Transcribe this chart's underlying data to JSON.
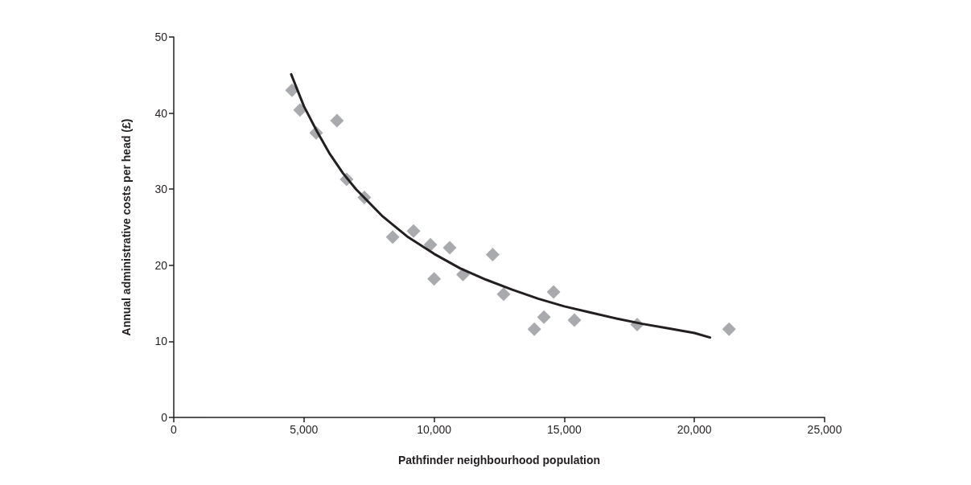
{
  "chart_data": {
    "type": "scatter",
    "xlabel": "Pathfinder neighbourhood population",
    "ylabel": "Annual administrative costs per head (£)",
    "xlim": [
      0,
      25000
    ],
    "xticks": [
      0,
      {
        "value": 5000,
        "label": "5,000"
      },
      {
        "value": 10000,
        "label": "10,000"
      },
      {
        "value": 15000,
        "label": "15,000"
      },
      {
        "value": 20000,
        "label": "20,000"
      },
      {
        "value": 25000,
        "label": "25,000"
      }
    ],
    "ylim": [
      0,
      50
    ],
    "yticks": [
      0,
      10,
      20,
      30,
      40,
      50
    ],
    "grid": false,
    "marker": "diamond",
    "series": [
      {
        "color": "#939598",
        "x": [
          4540,
          4850,
          5470,
          6270,
          6640,
          7320,
          8410,
          9210,
          9860,
          10600,
          10000,
          11110,
          12250,
          12670,
          14590,
          14220,
          13850,
          15390,
          17800,
          21330
        ],
        "values": [
          43.0,
          40.4,
          37.4,
          39.0,
          31.3,
          28.9,
          23.7,
          24.5,
          22.7,
          22.3,
          18.2,
          18.8,
          21.4,
          16.2,
          16.5,
          13.2,
          11.6,
          12.8,
          12.2,
          11.6
        ]
      },
      {
        "type": "line",
        "color": "#231f20",
        "marker": "none",
        "x": [
          4510,
          5000,
          5500,
          6000,
          6500,
          7000,
          8000,
          9000,
          10000,
          11000,
          12000,
          13000,
          14000,
          15000,
          16000,
          17000,
          18000,
          19000,
          20000,
          20600
        ],
        "values": [
          45.1,
          40.9,
          37.6,
          34.6,
          32.1,
          30.0,
          26.5,
          23.7,
          21.5,
          19.6,
          18.1,
          16.8,
          15.6,
          14.6,
          13.8,
          13.0,
          12.3,
          11.7,
          11.1,
          10.5
        ]
      }
    ]
  }
}
